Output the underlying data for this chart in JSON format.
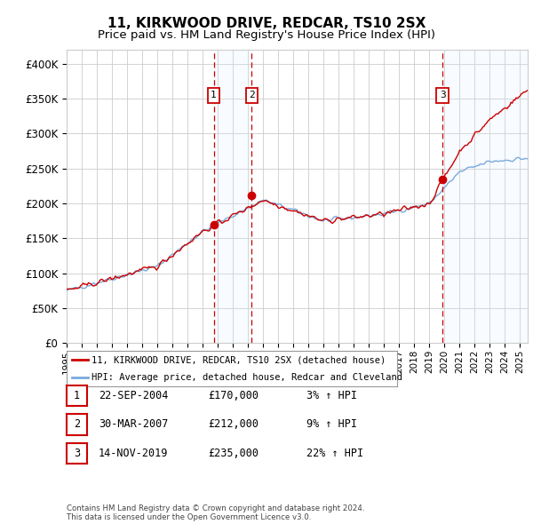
{
  "title": "11, KIRKWOOD DRIVE, REDCAR, TS10 2SX",
  "subtitle": "Price paid vs. HM Land Registry's House Price Index (HPI)",
  "ylabel_ticks": [
    0,
    50000,
    100000,
    150000,
    200000,
    250000,
    300000,
    350000,
    400000
  ],
  "ylabel_labels": [
    "£0",
    "£50K",
    "£100K",
    "£150K",
    "£200K",
    "£250K",
    "£300K",
    "£350K",
    "£400K"
  ],
  "ylim": [
    0,
    420000
  ],
  "sale_events": [
    {
      "label": "1",
      "date_str": "22-SEP-2004",
      "price": 170000,
      "pct": "3%",
      "date_num": 2004.73
    },
    {
      "label": "2",
      "date_str": "30-MAR-2007",
      "price": 212000,
      "pct": "9%",
      "date_num": 2007.25
    },
    {
      "label": "3",
      "date_str": "14-NOV-2019",
      "price": 235000,
      "pct": "22%",
      "date_num": 2019.87
    }
  ],
  "legend_property": "11, KIRKWOOD DRIVE, REDCAR, TS10 2SX (detached house)",
  "legend_hpi": "HPI: Average price, detached house, Redcar and Cleveland",
  "footnote": "Contains HM Land Registry data © Crown copyright and database right 2024.\nThis data is licensed under the Open Government Licence v3.0.",
  "property_line_color": "#cc0000",
  "hpi_line_color": "#7aaadd",
  "vline_color": "#cc0000",
  "shade_color": "#ddeeff",
  "background_color": "#ffffff",
  "grid_color": "#cccccc",
  "marker_box_color": "#cc0000",
  "title_fontsize": 11,
  "subtitle_fontsize": 9.5,
  "xmin": 1995,
  "xmax": 2025.5
}
